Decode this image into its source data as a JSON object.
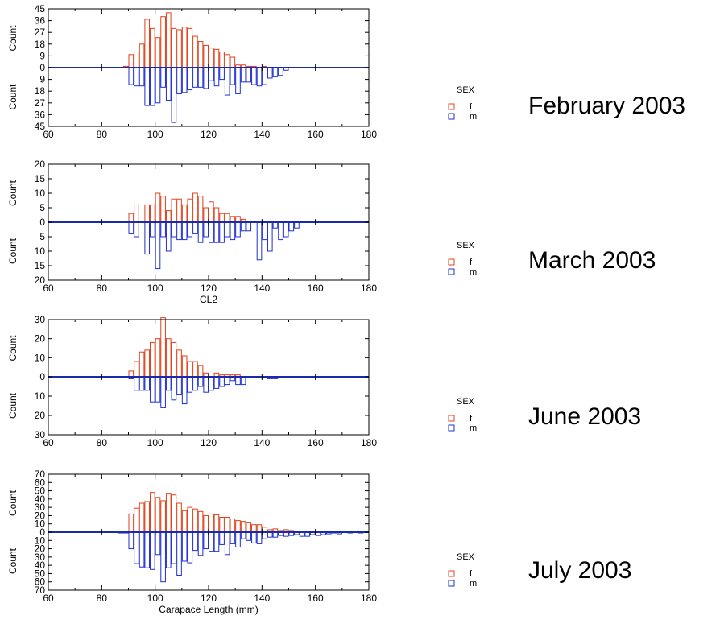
{
  "legend": {
    "title": "SEX",
    "entries": [
      {
        "label": "f",
        "color": "#e0401a"
      },
      {
        "label": "m",
        "color": "#1f2fd0"
      }
    ]
  },
  "colors": {
    "female": "#e0401a",
    "male": "#1f2fd0",
    "zero_line": "#1a2aa8",
    "axis": "#000000"
  },
  "chart_data": [
    {
      "type": "bar",
      "orientation": "back-to-back histogram",
      "title": "February 2003",
      "xlabel": "",
      "ylabel_top": "Count",
      "ylabel_bottom": "Count",
      "xlim": [
        60,
        180
      ],
      "x_ticks": [
        "60",
        "80",
        "100",
        "120",
        "140",
        "160",
        "180"
      ],
      "ylim": 45,
      "y_ticks": [
        "45",
        "36",
        "27",
        "18",
        "9",
        "0",
        "9",
        "18",
        "27",
        "36",
        "45"
      ],
      "bin_width": 2,
      "bin_starts": [
        88,
        90,
        92,
        94,
        96,
        98,
        100,
        102,
        104,
        106,
        108,
        110,
        112,
        114,
        116,
        118,
        120,
        122,
        124,
        126,
        128,
        130,
        132,
        134,
        136,
        138,
        140,
        142,
        144,
        146,
        148
      ],
      "series": [
        {
          "name": "f",
          "values": [
            1,
            10,
            12,
            18,
            37,
            30,
            23,
            39,
            42,
            30,
            29,
            31,
            30,
            24,
            20,
            17,
            15,
            14,
            12,
            10,
            8,
            2,
            2,
            1,
            1,
            0,
            1,
            0,
            0,
            0,
            0
          ]
        },
        {
          "name": "m",
          "values": [
            0,
            13,
            14,
            14,
            29,
            29,
            27,
            15,
            25,
            42,
            20,
            19,
            17,
            15,
            15,
            16,
            10,
            14,
            9,
            21,
            13,
            20,
            11,
            11,
            13,
            14,
            13,
            8,
            7,
            6,
            2
          ]
        }
      ]
    },
    {
      "type": "bar",
      "orientation": "back-to-back histogram",
      "title": "March 2003",
      "xlabel": "CL2",
      "ylabel_top": "Count",
      "ylabel_bottom": "Count",
      "xlim": [
        60,
        180
      ],
      "x_ticks": [
        "60",
        "80",
        "100",
        "120",
        "140",
        "160",
        "180"
      ],
      "ylim": 20,
      "y_ticks": [
        "20",
        "15",
        "10",
        "5",
        "0",
        "5",
        "10",
        "15",
        "20"
      ],
      "bin_width": 2,
      "bin_starts": [
        90,
        92,
        94,
        96,
        98,
        100,
        102,
        104,
        106,
        108,
        110,
        112,
        114,
        116,
        118,
        120,
        122,
        124,
        126,
        128,
        130,
        132,
        134,
        136,
        138,
        140,
        142,
        144,
        146,
        148,
        150,
        152
      ],
      "series": [
        {
          "name": "f",
          "values": [
            3,
            6,
            0,
            6,
            6,
            10,
            9,
            4,
            8,
            8,
            6,
            8,
            10,
            9,
            5,
            7,
            5,
            3,
            3,
            2,
            2,
            1,
            0,
            0,
            0,
            0,
            0,
            0,
            0,
            0,
            0,
            0
          ]
        },
        {
          "name": "m",
          "values": [
            4,
            5,
            0,
            11,
            5,
            16,
            5,
            10,
            5,
            6,
            6,
            5,
            4,
            7,
            5,
            7,
            7,
            7,
            5,
            6,
            5,
            3,
            3,
            0,
            13,
            6,
            10,
            2,
            6,
            5,
            3,
            2
          ]
        }
      ]
    },
    {
      "type": "bar",
      "orientation": "back-to-back histogram",
      "title": "June 2003",
      "xlabel": "",
      "ylabel_top": "Count",
      "ylabel_bottom": "Count",
      "xlim": [
        60,
        180
      ],
      "x_ticks": [
        "60",
        "80",
        "100",
        "120",
        "140",
        "160",
        "180"
      ],
      "ylim": 30,
      "y_ticks": [
        "30",
        "20",
        "10",
        "0",
        "10",
        "20",
        "30"
      ],
      "bin_width": 2,
      "bin_starts": [
        90,
        92,
        94,
        96,
        98,
        100,
        102,
        104,
        106,
        108,
        110,
        112,
        114,
        116,
        118,
        120,
        122,
        124,
        126,
        128,
        130,
        132,
        134,
        136,
        138,
        140,
        142,
        144
      ],
      "series": [
        {
          "name": "f",
          "values": [
            3,
            8,
            13,
            14,
            18,
            20,
            31,
            20,
            18,
            14,
            11,
            8,
            8,
            6,
            2,
            0,
            2,
            1,
            1,
            1,
            1,
            0,
            0,
            0,
            0,
            0,
            0,
            0
          ]
        },
        {
          "name": "m",
          "values": [
            1,
            7,
            7,
            7,
            13,
            13,
            16,
            7,
            12,
            9,
            14,
            8,
            7,
            5,
            8,
            7,
            6,
            5,
            4,
            2,
            4,
            4,
            0,
            0,
            0,
            0,
            1,
            1
          ]
        }
      ]
    },
    {
      "type": "bar",
      "orientation": "back-to-back histogram",
      "title": "July 2003",
      "xlabel": "Carapace Length (mm)",
      "ylabel_top": "Count",
      "ylabel_bottom": "Count",
      "xlim": [
        60,
        180
      ],
      "x_ticks": [
        "60",
        "80",
        "100",
        "120",
        "140",
        "160",
        "180"
      ],
      "ylim": 70,
      "y_ticks": [
        "70",
        "60",
        "50",
        "40",
        "30",
        "20",
        "10",
        "0",
        "10",
        "20",
        "30",
        "40",
        "50",
        "60",
        "70"
      ],
      "bin_width": 2,
      "bin_starts": [
        86,
        88,
        90,
        92,
        94,
        96,
        98,
        100,
        102,
        104,
        106,
        108,
        110,
        112,
        114,
        116,
        118,
        120,
        122,
        124,
        126,
        128,
        130,
        132,
        134,
        136,
        138,
        140,
        142,
        144,
        146,
        148,
        150,
        152,
        154,
        156,
        158,
        160,
        162,
        164,
        166,
        168,
        170,
        172,
        174,
        176,
        178
      ],
      "series": [
        {
          "name": "f",
          "values": [
            0,
            0,
            22,
            29,
            35,
            37,
            48,
            42,
            38,
            47,
            45,
            35,
            26,
            30,
            28,
            25,
            20,
            22,
            21,
            18,
            18,
            16,
            14,
            13,
            12,
            9,
            9,
            6,
            3,
            4,
            2,
            3,
            2,
            1,
            1,
            1,
            1,
            1,
            0,
            0,
            0,
            0,
            0,
            0,
            0,
            0,
            0
          ]
        },
        {
          "name": "m",
          "values": [
            1,
            1,
            20,
            38,
            42,
            43,
            45,
            27,
            60,
            43,
            38,
            52,
            35,
            37,
            22,
            28,
            20,
            23,
            23,
            15,
            27,
            14,
            18,
            8,
            10,
            13,
            14,
            8,
            6,
            6,
            4,
            5,
            4,
            3,
            5,
            5,
            3,
            4,
            3,
            2,
            1,
            2,
            0,
            1,
            0,
            1,
            0
          ]
        }
      ]
    }
  ]
}
